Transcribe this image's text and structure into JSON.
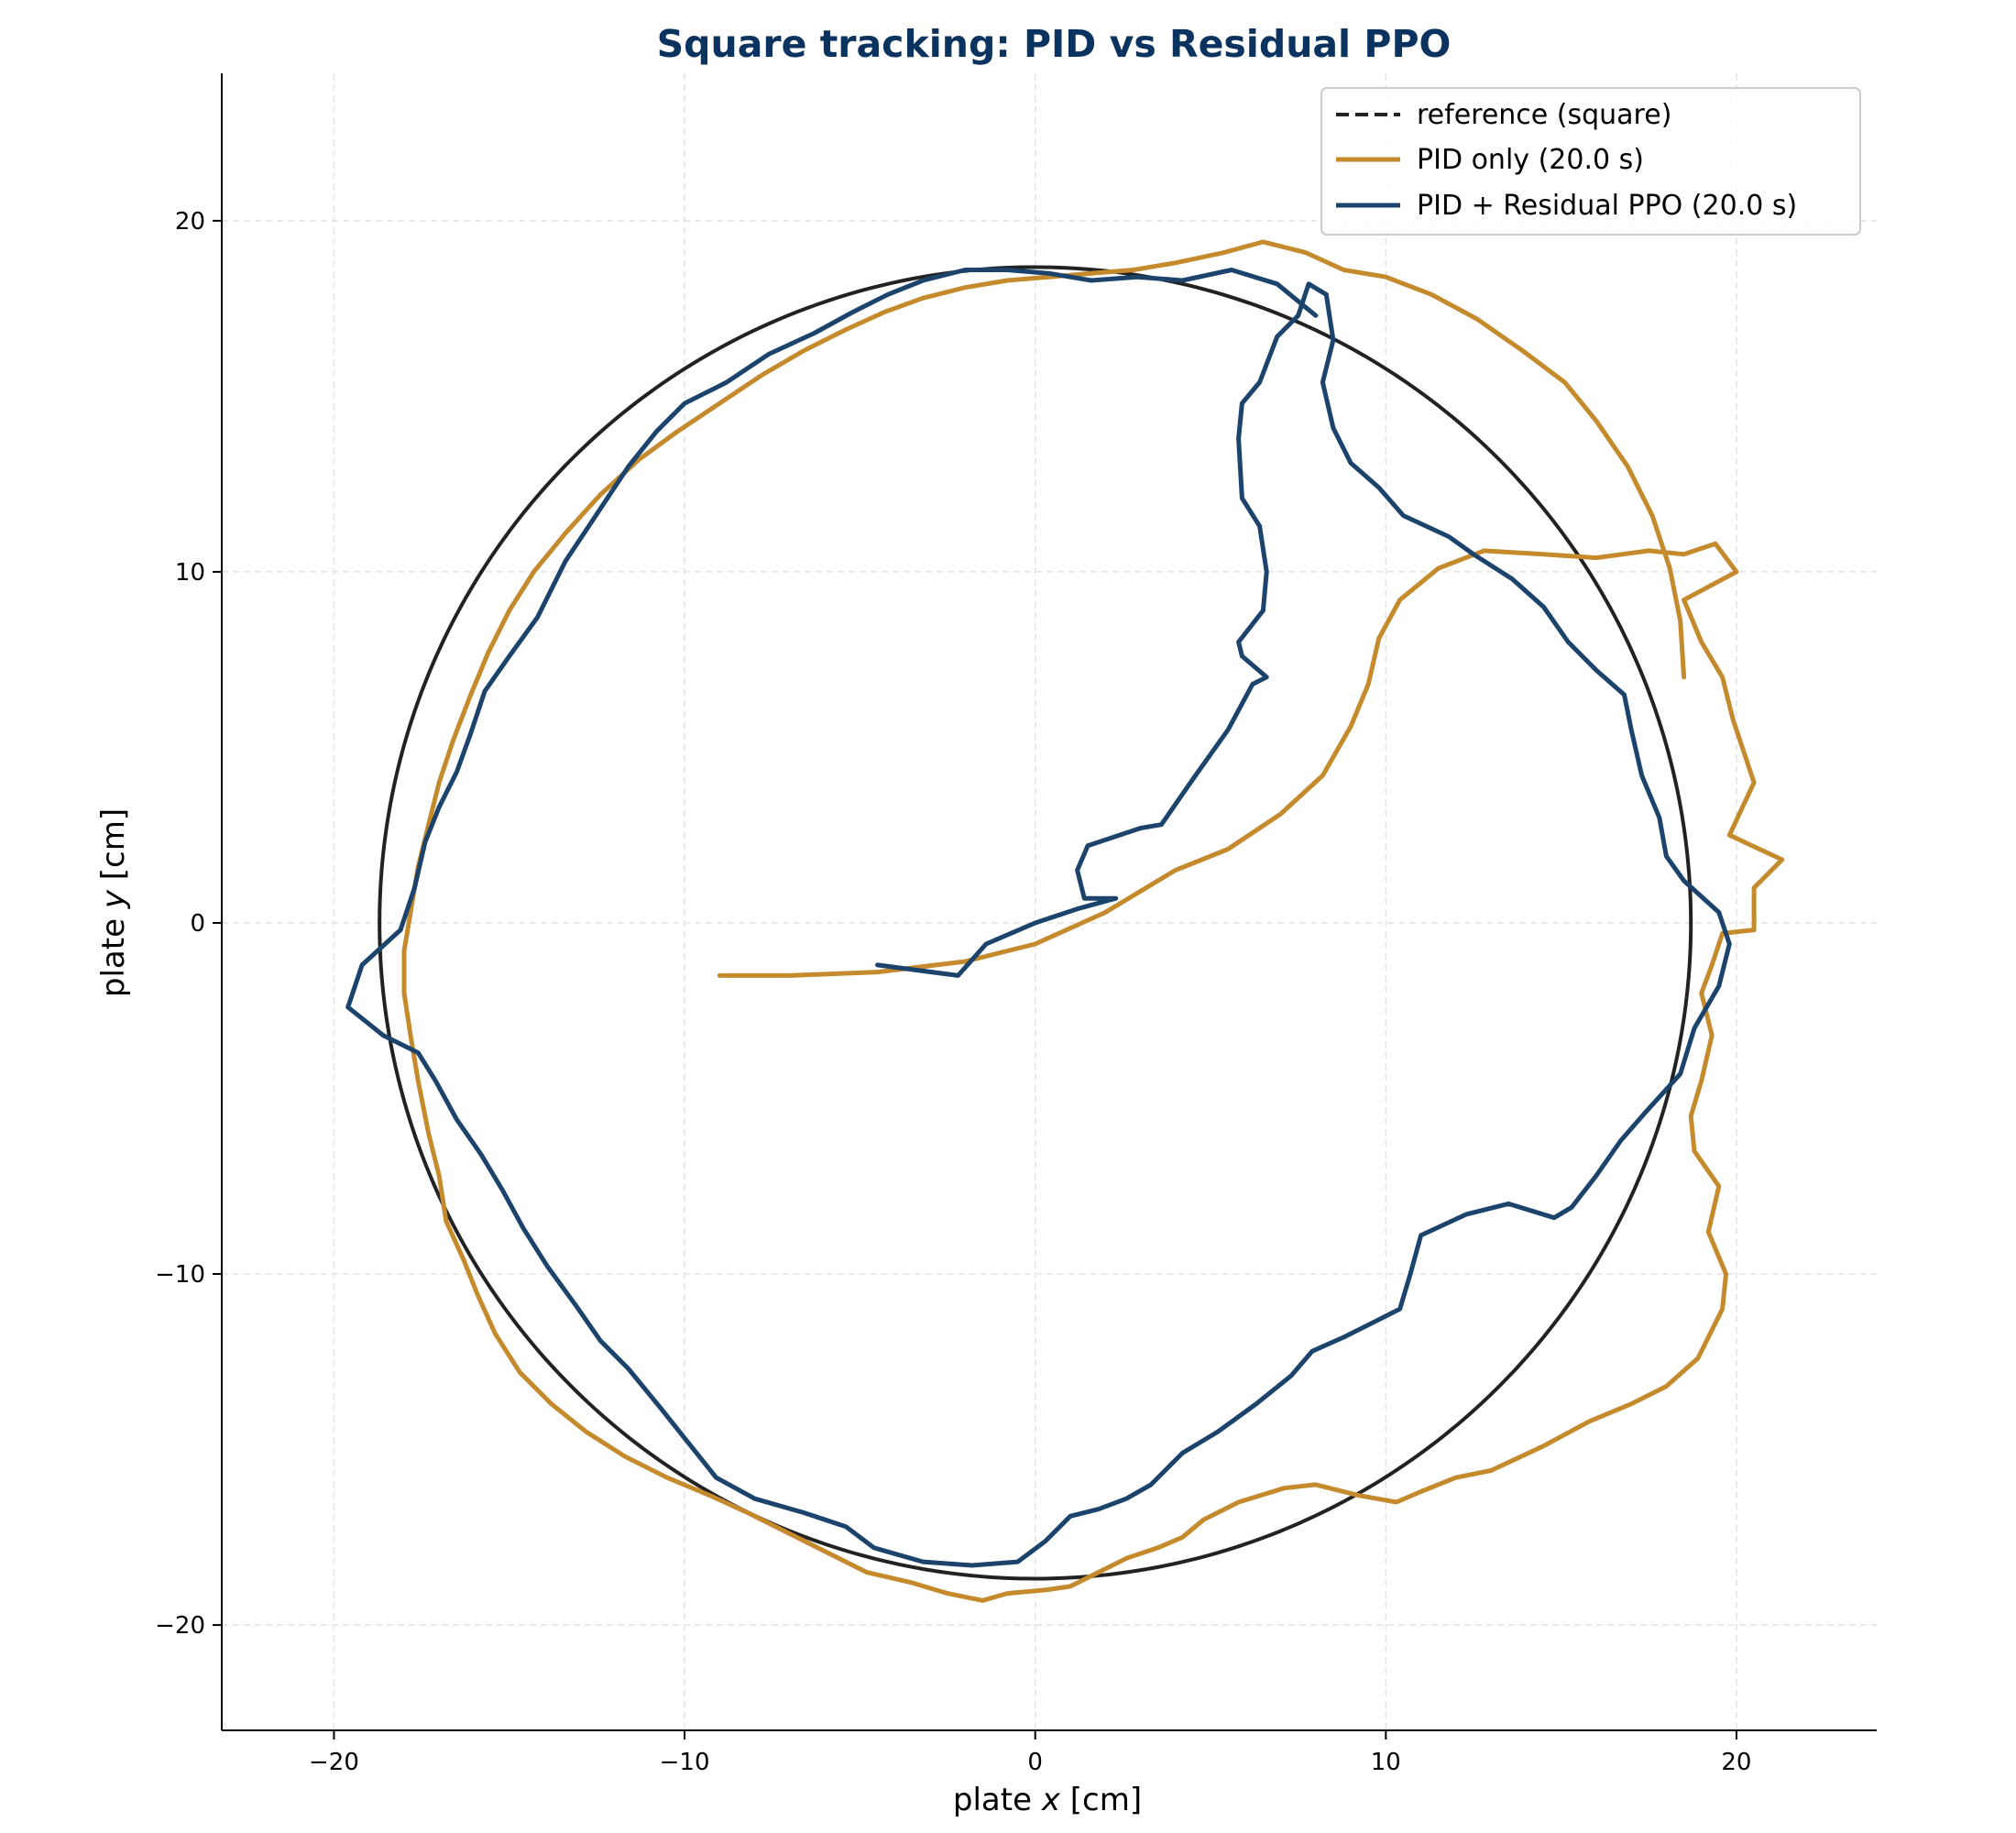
{
  "colors": {
    "reference": "#222222",
    "pid": "#C48A2C",
    "ppo": "#1B436C",
    "title": "#0B3360",
    "grid": "#e3e3e3"
  },
  "chart_data": {
    "type": "line",
    "title": "Square tracking: PID vs Residual PPO",
    "xlabel_prefix": "plate ",
    "xlabel_var": "x",
    "xlabel_suffix": " [cm]",
    "ylabel_prefix": "plate ",
    "ylabel_var": "y",
    "ylabel_suffix": " [cm]",
    "xlim": [
      -23.2,
      24.0
    ],
    "ylim": [
      -23.0,
      24.2
    ],
    "xticks": [
      -20,
      -10,
      0,
      10,
      20
    ],
    "yticks": [
      -20,
      -10,
      0,
      10,
      20
    ],
    "xtick_labels": [
      "−20",
      "−10",
      "0",
      "10",
      "20"
    ],
    "ytick_labels": [
      "−20",
      "−10",
      "0",
      "10",
      "20"
    ],
    "grid": true,
    "legend_position": "upper right",
    "series": [
      {
        "name": "reference (square)",
        "style": "dashed",
        "shape": "circle",
        "center": [
          0,
          0
        ],
        "radius": 18.7
      },
      {
        "name": "PID only (20.0 s)",
        "style": "solid",
        "points": [
          [
            -9.0,
            -1.5
          ],
          [
            -7.0,
            -1.5
          ],
          [
            -4.5,
            -1.4
          ],
          [
            -2.0,
            -1.1
          ],
          [
            0.0,
            -0.6
          ],
          [
            2.0,
            0.3
          ],
          [
            4.0,
            1.5
          ],
          [
            5.5,
            2.1
          ],
          [
            7.0,
            3.1
          ],
          [
            8.2,
            4.2
          ],
          [
            9.0,
            5.6
          ],
          [
            9.5,
            6.8
          ],
          [
            9.8,
            8.1
          ],
          [
            10.4,
            9.2
          ],
          [
            11.5,
            10.1
          ],
          [
            12.8,
            10.6
          ],
          [
            14.5,
            10.5
          ],
          [
            16.0,
            10.4
          ],
          [
            17.5,
            10.6
          ],
          [
            18.5,
            10.5
          ],
          [
            19.4,
            10.8
          ],
          [
            20.0,
            10.0
          ],
          [
            18.5,
            9.2
          ],
          [
            19.0,
            8.0
          ],
          [
            19.6,
            7.0
          ],
          [
            19.9,
            5.8
          ],
          [
            20.5,
            4.0
          ],
          [
            19.8,
            2.5
          ],
          [
            21.3,
            1.8
          ],
          [
            20.5,
            1.0
          ],
          [
            20.5,
            -0.2
          ],
          [
            19.6,
            -0.3
          ],
          [
            19.3,
            -1.2
          ],
          [
            19.0,
            -2.0
          ],
          [
            19.3,
            -3.2
          ],
          [
            19.0,
            -4.5
          ],
          [
            18.7,
            -5.5
          ],
          [
            18.8,
            -6.5
          ],
          [
            19.5,
            -7.5
          ],
          [
            19.2,
            -8.8
          ],
          [
            19.7,
            -10.0
          ],
          [
            19.6,
            -11.0
          ],
          [
            18.9,
            -12.4
          ],
          [
            18.0,
            -13.2
          ],
          [
            17.0,
            -13.7
          ],
          [
            15.8,
            -14.2
          ],
          [
            14.5,
            -14.9
          ],
          [
            13.0,
            -15.6
          ],
          [
            12.0,
            -15.8
          ],
          [
            11.0,
            -16.2
          ],
          [
            10.3,
            -16.5
          ],
          [
            9.2,
            -16.3
          ],
          [
            8.0,
            -16.0
          ],
          [
            7.1,
            -16.1
          ],
          [
            5.8,
            -16.5
          ],
          [
            4.8,
            -17.0
          ],
          [
            4.2,
            -17.5
          ],
          [
            3.5,
            -17.8
          ],
          [
            2.6,
            -18.1
          ],
          [
            1.8,
            -18.5
          ],
          [
            1.0,
            -18.9
          ],
          [
            0.3,
            -19.0
          ],
          [
            -0.8,
            -19.1
          ],
          [
            -1.5,
            -19.3
          ],
          [
            -2.5,
            -19.1
          ],
          [
            -3.5,
            -18.8
          ],
          [
            -4.8,
            -18.5
          ],
          [
            -5.8,
            -18.0
          ],
          [
            -7.0,
            -17.4
          ],
          [
            -8.2,
            -16.8
          ],
          [
            -9.3,
            -16.3
          ],
          [
            -10.5,
            -15.8
          ],
          [
            -11.7,
            -15.2
          ],
          [
            -12.8,
            -14.5
          ],
          [
            -13.8,
            -13.7
          ],
          [
            -14.7,
            -12.8
          ],
          [
            -15.4,
            -11.7
          ],
          [
            -15.9,
            -10.6
          ],
          [
            -16.3,
            -9.6
          ],
          [
            -16.8,
            -8.5
          ],
          [
            -17.0,
            -7.2
          ],
          [
            -17.3,
            -6.0
          ],
          [
            -17.6,
            -4.5
          ],
          [
            -17.8,
            -3.3
          ],
          [
            -18.0,
            -2.0
          ],
          [
            -18.0,
            -0.8
          ],
          [
            -17.8,
            0.4
          ],
          [
            -17.6,
            1.6
          ],
          [
            -17.3,
            2.8
          ],
          [
            -17.0,
            4.0
          ],
          [
            -16.6,
            5.2
          ],
          [
            -16.1,
            6.5
          ],
          [
            -15.6,
            7.7
          ],
          [
            -15.0,
            8.9
          ],
          [
            -14.3,
            10.0
          ],
          [
            -13.4,
            11.1
          ],
          [
            -12.4,
            12.2
          ],
          [
            -11.3,
            13.2
          ],
          [
            -10.2,
            14.0
          ],
          [
            -9.0,
            14.8
          ],
          [
            -7.8,
            15.6
          ],
          [
            -6.6,
            16.3
          ],
          [
            -5.4,
            16.9
          ],
          [
            -4.3,
            17.4
          ],
          [
            -3.2,
            17.8
          ],
          [
            -2.0,
            18.1
          ],
          [
            -0.8,
            18.3
          ],
          [
            0.4,
            18.4
          ],
          [
            1.6,
            18.5
          ],
          [
            2.8,
            18.6
          ],
          [
            4.0,
            18.8
          ],
          [
            5.4,
            19.1
          ],
          [
            6.5,
            19.4
          ],
          [
            7.7,
            19.1
          ],
          [
            8.8,
            18.6
          ],
          [
            10.0,
            18.4
          ],
          [
            11.3,
            17.9
          ],
          [
            12.6,
            17.2
          ],
          [
            13.9,
            16.3
          ],
          [
            15.1,
            15.4
          ],
          [
            16.0,
            14.3
          ],
          [
            16.9,
            13.0
          ],
          [
            17.6,
            11.6
          ],
          [
            18.1,
            10.1
          ],
          [
            18.4,
            8.6
          ],
          [
            18.5,
            7.0
          ]
        ]
      },
      {
        "name": "PID + Residual PPO (20.0 s)",
        "style": "solid",
        "points": [
          [
            -4.5,
            -1.2
          ],
          [
            -2.2,
            -1.5
          ],
          [
            -1.4,
            -0.6
          ],
          [
            0.0,
            0.0
          ],
          [
            1.2,
            0.4
          ],
          [
            2.3,
            0.7
          ],
          [
            1.4,
            0.7
          ],
          [
            1.2,
            1.5
          ],
          [
            1.5,
            2.2
          ],
          [
            3.0,
            2.7
          ],
          [
            3.6,
            2.8
          ],
          [
            4.5,
            4.1
          ],
          [
            5.5,
            5.5
          ],
          [
            6.2,
            6.8
          ],
          [
            6.6,
            7.0
          ],
          [
            5.9,
            7.6
          ],
          [
            5.8,
            8.0
          ],
          [
            6.5,
            8.9
          ],
          [
            6.6,
            10.0
          ],
          [
            6.4,
            11.3
          ],
          [
            5.9,
            12.1
          ],
          [
            5.8,
            13.8
          ],
          [
            5.9,
            14.8
          ],
          [
            6.4,
            15.4
          ],
          [
            6.9,
            16.7
          ],
          [
            7.5,
            17.3
          ],
          [
            7.8,
            18.2
          ],
          [
            8.3,
            17.9
          ],
          [
            8.5,
            16.6
          ],
          [
            8.2,
            15.4
          ],
          [
            8.5,
            14.1
          ],
          [
            9.0,
            13.1
          ],
          [
            9.8,
            12.4
          ],
          [
            10.5,
            11.6
          ],
          [
            11.8,
            11.0
          ],
          [
            12.5,
            10.5
          ],
          [
            13.6,
            9.8
          ],
          [
            14.5,
            9.0
          ],
          [
            15.2,
            8.0
          ],
          [
            16.0,
            7.2
          ],
          [
            16.8,
            6.5
          ],
          [
            17.0,
            5.5
          ],
          [
            17.3,
            4.2
          ],
          [
            17.8,
            3.0
          ],
          [
            18.0,
            1.9
          ],
          [
            18.5,
            1.2
          ],
          [
            19.5,
            0.3
          ],
          [
            19.8,
            -0.6
          ],
          [
            19.5,
            -1.8
          ],
          [
            18.8,
            -3.0
          ],
          [
            18.4,
            -4.3
          ],
          [
            17.4,
            -5.4
          ],
          [
            16.7,
            -6.2
          ],
          [
            16.0,
            -7.2
          ],
          [
            15.3,
            -8.1
          ],
          [
            14.8,
            -8.4
          ],
          [
            13.5,
            -8.0
          ],
          [
            12.3,
            -8.3
          ],
          [
            11.0,
            -8.9
          ],
          [
            10.7,
            -10.0
          ],
          [
            10.4,
            -11.0
          ],
          [
            9.6,
            -11.4
          ],
          [
            8.8,
            -11.8
          ],
          [
            7.9,
            -12.2
          ],
          [
            7.3,
            -12.9
          ],
          [
            6.3,
            -13.7
          ],
          [
            5.2,
            -14.5
          ],
          [
            4.2,
            -15.1
          ],
          [
            3.3,
            -16.0
          ],
          [
            2.6,
            -16.4
          ],
          [
            1.8,
            -16.7
          ],
          [
            1.0,
            -16.9
          ],
          [
            0.3,
            -17.6
          ],
          [
            -0.5,
            -18.2
          ],
          [
            -1.8,
            -18.3
          ],
          [
            -3.2,
            -18.2
          ],
          [
            -4.6,
            -17.8
          ],
          [
            -5.4,
            -17.2
          ],
          [
            -6.6,
            -16.8
          ],
          [
            -8.0,
            -16.4
          ],
          [
            -9.1,
            -15.8
          ],
          [
            -9.9,
            -14.8
          ],
          [
            -10.7,
            -13.8
          ],
          [
            -11.6,
            -12.7
          ],
          [
            -12.4,
            -11.9
          ],
          [
            -13.1,
            -10.9
          ],
          [
            -13.9,
            -9.8
          ],
          [
            -14.6,
            -8.7
          ],
          [
            -15.2,
            -7.6
          ],
          [
            -15.8,
            -6.6
          ],
          [
            -16.5,
            -5.6
          ],
          [
            -17.1,
            -4.5
          ],
          [
            -17.6,
            -3.7
          ],
          [
            -18.6,
            -3.2
          ],
          [
            -19.6,
            -2.4
          ],
          [
            -19.2,
            -1.2
          ],
          [
            -18.1,
            -0.2
          ],
          [
            -17.7,
            1.0
          ],
          [
            -17.4,
            2.3
          ],
          [
            -17.0,
            3.3
          ],
          [
            -16.5,
            4.3
          ],
          [
            -16.1,
            5.4
          ],
          [
            -15.7,
            6.6
          ],
          [
            -15.0,
            7.6
          ],
          [
            -14.2,
            8.7
          ],
          [
            -13.4,
            10.3
          ],
          [
            -12.4,
            11.8
          ],
          [
            -11.6,
            13.0
          ],
          [
            -10.8,
            14.0
          ],
          [
            -10.0,
            14.8
          ],
          [
            -8.8,
            15.4
          ],
          [
            -7.6,
            16.2
          ],
          [
            -6.3,
            16.8
          ],
          [
            -5.2,
            17.4
          ],
          [
            -4.2,
            17.9
          ],
          [
            -3.2,
            18.3
          ],
          [
            -2.0,
            18.6
          ],
          [
            -0.8,
            18.6
          ],
          [
            0.4,
            18.5
          ],
          [
            1.6,
            18.3
          ],
          [
            2.9,
            18.4
          ],
          [
            4.2,
            18.3
          ],
          [
            5.6,
            18.6
          ],
          [
            6.9,
            18.2
          ],
          [
            8.0,
            17.3
          ]
        ]
      }
    ]
  }
}
